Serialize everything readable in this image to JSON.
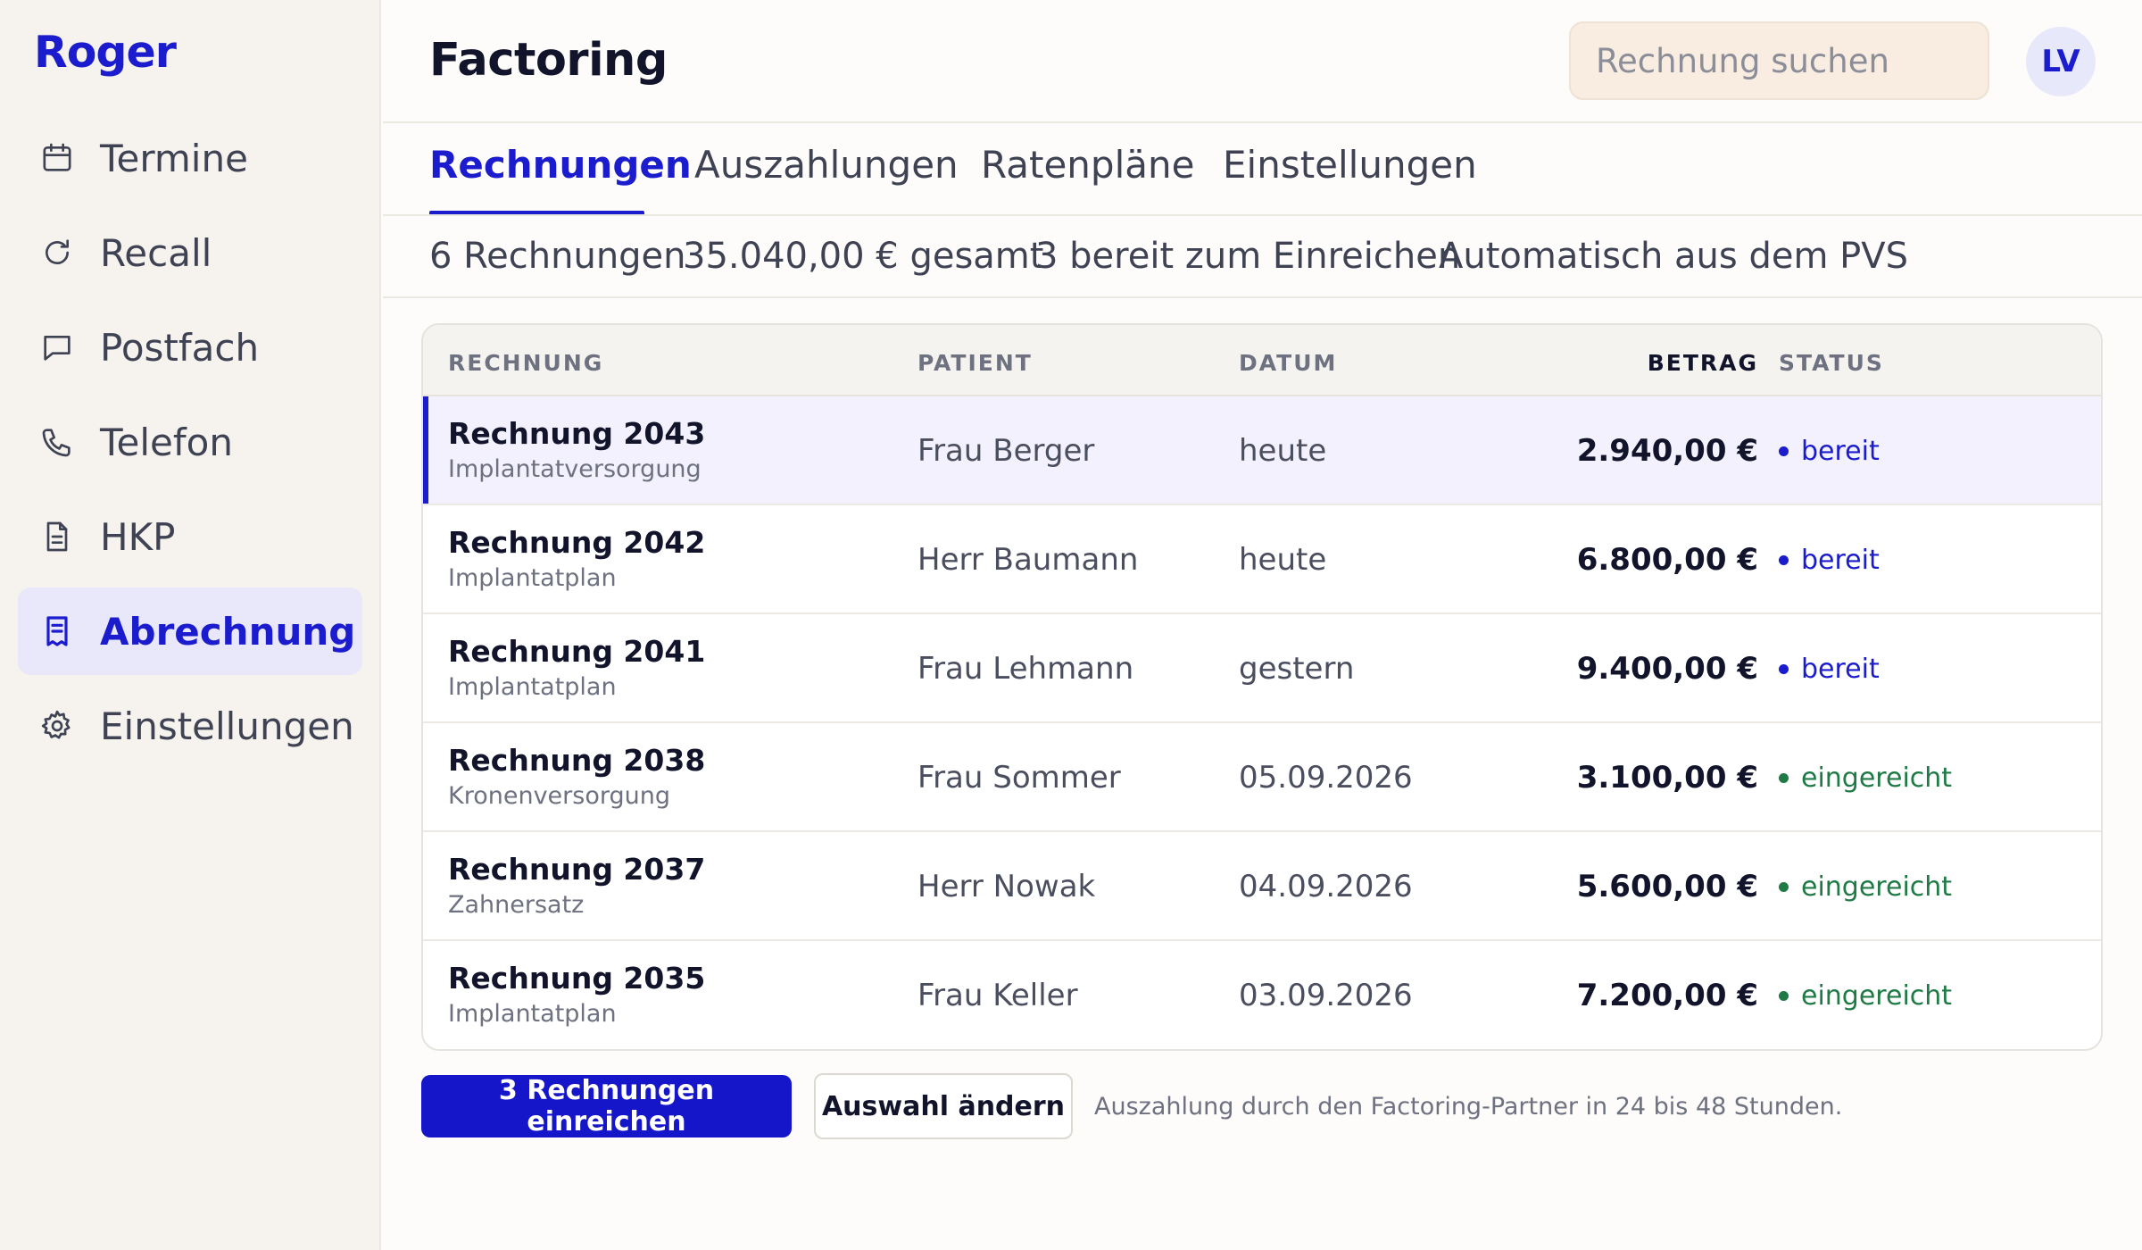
{
  "app": {
    "logo": "Roger"
  },
  "sidebar": {
    "items": [
      {
        "label": "Termine",
        "icon": "calendar-icon"
      },
      {
        "label": "Recall",
        "icon": "refresh-icon"
      },
      {
        "label": "Postfach",
        "icon": "message-icon"
      },
      {
        "label": "Telefon",
        "icon": "phone-icon"
      },
      {
        "label": "HKP",
        "icon": "document-icon"
      },
      {
        "label": "Abrechnung",
        "icon": "receipt-icon",
        "active": true
      },
      {
        "label": "Einstellungen",
        "icon": "gear-icon"
      }
    ]
  },
  "header": {
    "title": "Factoring",
    "search_placeholder": "Rechnung suchen",
    "avatar_initials": "LV"
  },
  "tabs": [
    {
      "label": "Rechnungen",
      "active": true
    },
    {
      "label": "Auszahlungen"
    },
    {
      "label": "Ratenpläne"
    },
    {
      "label": "Einstellungen"
    }
  ],
  "summary": {
    "count": "6 Rechnungen",
    "total": "35.040,00 € gesamt",
    "ready": "3 bereit zum Einreichen",
    "source": "Automatisch aus dem PVS"
  },
  "table": {
    "columns": {
      "invoice": "RECHNUNG",
      "patient": "PATIENT",
      "date": "DATUM",
      "amount": "BETRAG",
      "status": "STATUS"
    },
    "rows": [
      {
        "title": "Rechnung 2043",
        "subtitle": "Implantatversorgung",
        "patient": "Frau Berger",
        "date": "heute",
        "amount": "2.940,00 €",
        "status": "bereit",
        "selected": true
      },
      {
        "title": "Rechnung 2042",
        "subtitle": "Implantatplan",
        "patient": "Herr Baumann",
        "date": "heute",
        "amount": "6.800,00 €",
        "status": "bereit"
      },
      {
        "title": "Rechnung 2041",
        "subtitle": "Implantatplan",
        "patient": "Frau Lehmann",
        "date": "gestern",
        "amount": "9.400,00 €",
        "status": "bereit"
      },
      {
        "title": "Rechnung 2038",
        "subtitle": "Kronenversorgung",
        "patient": "Frau Sommer",
        "date": "05.09.2026",
        "amount": "3.100,00 €",
        "status": "eingereicht"
      },
      {
        "title": "Rechnung 2037",
        "subtitle": "Zahnersatz",
        "patient": "Herr Nowak",
        "date": "04.09.2026",
        "amount": "5.600,00 €",
        "status": "eingereicht"
      },
      {
        "title": "Rechnung 2035",
        "subtitle": "Implantatplan",
        "patient": "Frau Keller",
        "date": "03.09.2026",
        "amount": "7.200,00 €",
        "status": "eingereicht"
      }
    ]
  },
  "actions": {
    "submit_label": "3 Rechnungen einreichen",
    "change_selection_label": "Auswahl ändern",
    "note": "Auszahlung durch den Factoring-Partner in 24 bis 48 Stunden."
  },
  "colors": {
    "accent": "#1a1ccd",
    "status_ready": "#1a1ccd",
    "status_submitted": "#1f7a45",
    "sidebar_bg": "#f6f3ee",
    "search_bg": "#f8ede0"
  }
}
